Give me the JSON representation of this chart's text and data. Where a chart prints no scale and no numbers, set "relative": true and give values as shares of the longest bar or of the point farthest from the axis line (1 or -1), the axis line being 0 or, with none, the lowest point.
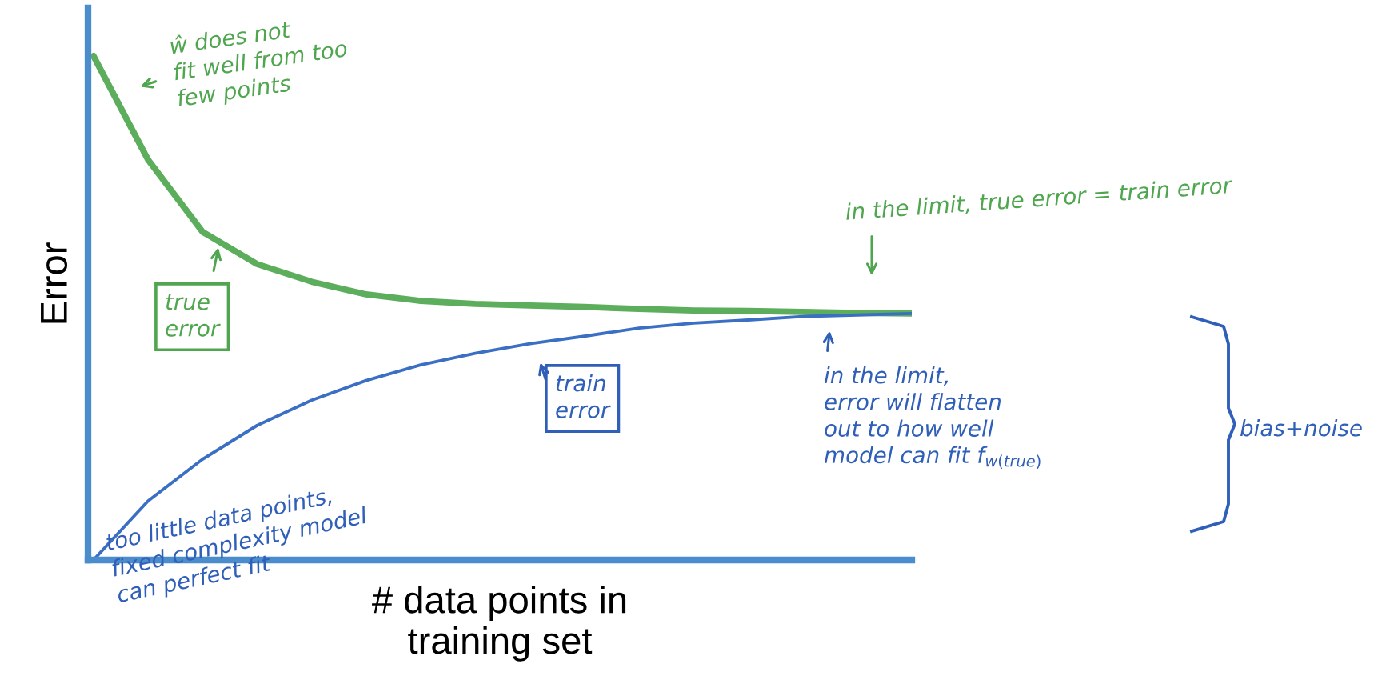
{
  "chart_data": {
    "type": "line",
    "relative": true,
    "xlabel": "# data points in\ntraining set",
    "ylabel": "Error",
    "categories": [
      null,
      null,
      null,
      null,
      null,
      null,
      null,
      null,
      null,
      null,
      null,
      null,
      null,
      null,
      null,
      null
    ],
    "series": [
      {
        "color": "#5cad5c",
        "values": [
          1,
          0.794,
          0.651,
          0.587,
          0.552,
          0.527,
          0.514,
          0.508,
          0.505,
          0.502,
          0.498,
          0.495,
          0.494,
          0.492,
          0.49,
          0.489
        ]
      },
      {
        "color": "#3a6fc4",
        "values": [
          0,
          0.117,
          0.2,
          0.267,
          0.317,
          0.356,
          0.387,
          0.41,
          0.429,
          0.444,
          0.46,
          0.47,
          0.476,
          0.483,
          0.486,
          0.489
        ]
      }
    ],
    "annotations": [
      "ŵ does not\nfit well from too\nfew points",
      "true\nerror",
      "train\nerror",
      "in the limit, true error = train error",
      "too little data points,\nfixed complexity model\ncan perfect fit",
      "in the limit,\nerror will flatten\nout to how well\nmodel can fit f$_{w(true)}$",
      "bias+noise"
    ],
    "legend": false,
    "grid": false,
    "marker": "none",
    "line_style": "solid"
  }
}
